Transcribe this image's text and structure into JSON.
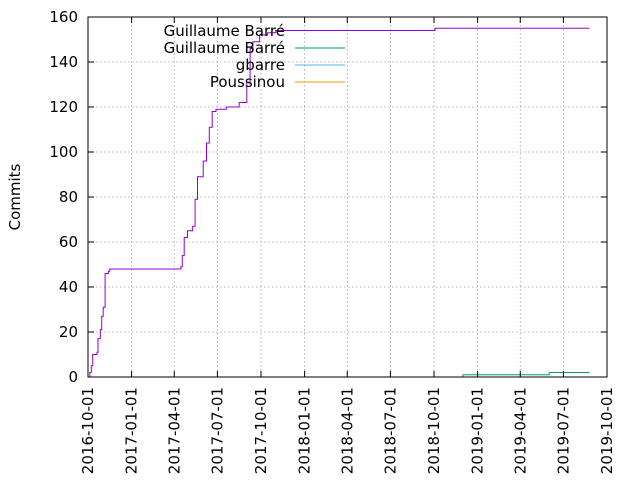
{
  "chart_data": {
    "type": "line",
    "ylabel": "Commits",
    "xlabel": "",
    "title": "",
    "xlim": [
      "2016-10-01",
      "2019-10-01"
    ],
    "ylim": [
      0,
      160
    ],
    "grid": true,
    "legend_position": "top-left",
    "x_ticks": [
      "2016-10-01",
      "2017-01-01",
      "2017-04-01",
      "2017-07-01",
      "2017-10-01",
      "2018-01-01",
      "2018-04-01",
      "2018-07-01",
      "2018-10-01",
      "2019-01-01",
      "2019-04-01",
      "2019-07-01",
      "2019-10-01"
    ],
    "y_ticks": [
      "0",
      "20",
      "40",
      "60",
      "80",
      "100",
      "120",
      "140",
      "160"
    ],
    "series": [
      {
        "name": "Guillaume Barré",
        "color": "#9400d3",
        "points": [
          [
            "2016-10-03",
            0
          ],
          [
            "2016-10-05",
            2
          ],
          [
            "2016-10-08",
            5
          ],
          [
            "2016-10-11",
            10
          ],
          [
            "2016-10-20",
            11
          ],
          [
            "2016-10-22",
            17
          ],
          [
            "2016-10-27",
            21
          ],
          [
            "2016-10-30",
            27
          ],
          [
            "2016-11-02",
            31
          ],
          [
            "2016-11-06",
            46
          ],
          [
            "2016-11-13",
            47
          ],
          [
            "2016-11-16",
            48
          ],
          [
            "2016-12-15",
            48
          ],
          [
            "2017-03-01",
            48
          ],
          [
            "2017-04-15",
            49
          ],
          [
            "2017-04-18",
            54
          ],
          [
            "2017-04-22",
            62
          ],
          [
            "2017-04-29",
            65
          ],
          [
            "2017-05-10",
            67
          ],
          [
            "2017-05-15",
            79
          ],
          [
            "2017-05-20",
            89
          ],
          [
            "2017-06-01",
            96
          ],
          [
            "2017-06-08",
            104
          ],
          [
            "2017-06-14",
            111
          ],
          [
            "2017-06-20",
            118
          ],
          [
            "2017-06-28",
            119
          ],
          [
            "2017-07-20",
            120
          ],
          [
            "2017-08-16",
            122
          ],
          [
            "2017-09-01",
            131
          ],
          [
            "2017-09-08",
            146
          ],
          [
            "2017-09-14",
            149
          ],
          [
            "2017-09-28",
            152
          ],
          [
            "2017-10-15",
            153
          ],
          [
            "2017-11-01",
            154
          ],
          [
            "2018-01-15",
            154
          ],
          [
            "2018-10-01",
            154
          ],
          [
            "2018-10-03",
            155
          ],
          [
            "2019-08-25",
            155
          ]
        ]
      },
      {
        "name": "Guillaume Barré",
        "color": "#009e73",
        "points": [
          [
            "2018-04-01",
            0
          ],
          [
            "2018-09-01",
            0
          ],
          [
            "2018-12-01",
            1
          ],
          [
            "2019-03-01",
            1
          ],
          [
            "2019-06-01",
            2
          ],
          [
            "2019-08-25",
            2
          ]
        ]
      },
      {
        "name": "gbarre",
        "color": "#56b4e9",
        "points": [
          [
            "2018-04-01",
            0
          ],
          [
            "2019-08-25",
            0
          ]
        ]
      },
      {
        "name": "Poussinou",
        "color": "#e69f00",
        "points": [
          [
            "2018-04-01",
            0
          ],
          [
            "2018-07-01",
            0
          ],
          [
            "2019-01-01",
            0
          ],
          [
            "2019-08-25",
            0
          ]
        ]
      }
    ]
  }
}
